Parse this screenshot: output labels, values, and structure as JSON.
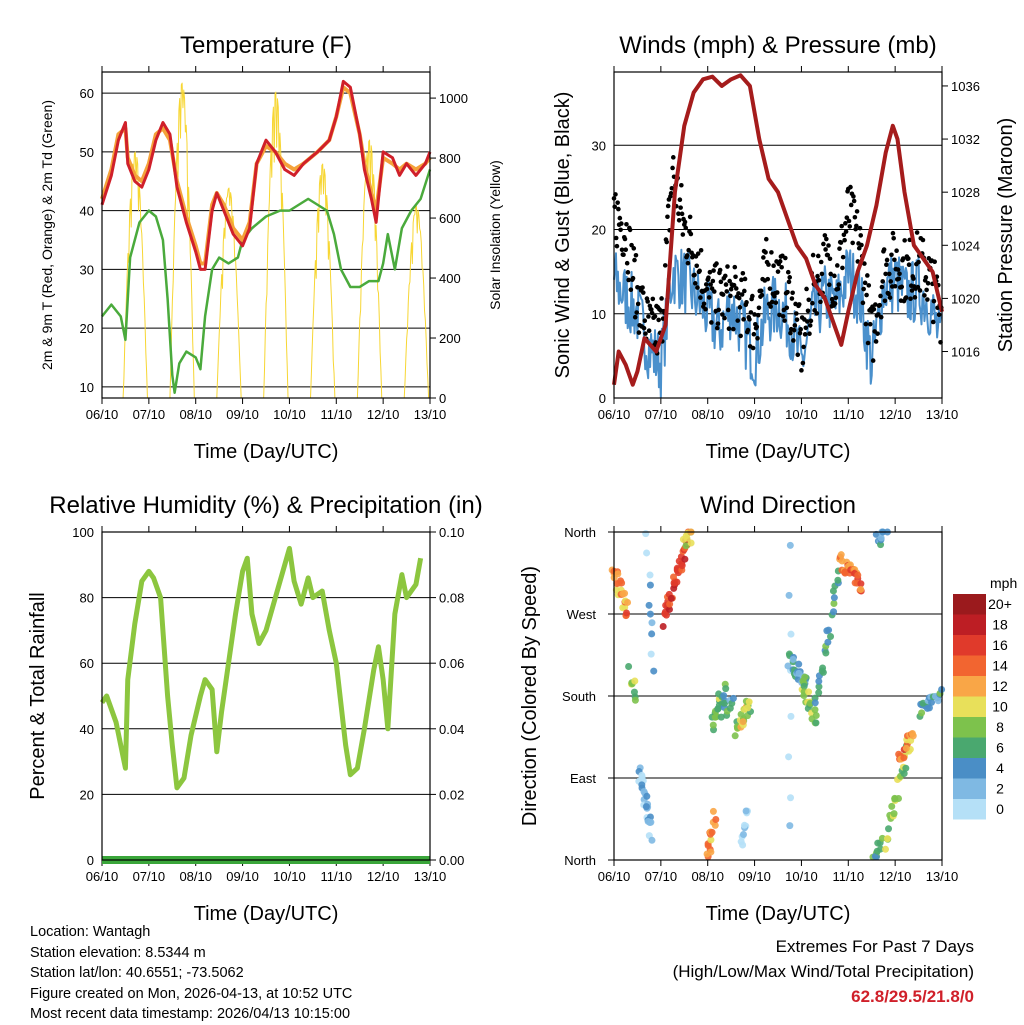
{
  "chart_data": [
    {
      "type": "line",
      "title": "Temperature (F)",
      "xlabel": "Time (Day/UTC)",
      "ylabel": "2m & 9m T (Red, Orange) & 2m Td (Green)",
      "ylabel_right": "Solar Insolation (Yellow)",
      "x_ticks": [
        "06/10",
        "07/10",
        "08/10",
        "09/10",
        "10/10",
        "11/10",
        "12/10",
        "13/10"
      ],
      "xlim": [
        0,
        7
      ],
      "ylim": [
        8.1,
        63.6
      ],
      "y_ticks": [
        10,
        20,
        30,
        40,
        50,
        60
      ],
      "ylim_right": [
        0,
        1087
      ],
      "y_ticks_right": [
        0,
        200,
        400,
        600,
        800,
        1000
      ],
      "grid": true,
      "series": [
        {
          "name": "2m T",
          "color": "#d0202a",
          "x": [
            0,
            0.2,
            0.35,
            0.5,
            0.55,
            0.7,
            0.85,
            1.0,
            1.15,
            1.3,
            1.45,
            1.6,
            1.8,
            2.0,
            2.1,
            2.2,
            2.35,
            2.45,
            2.6,
            2.8,
            3.0,
            3.15,
            3.3,
            3.5,
            3.7,
            3.9,
            4.1,
            4.3,
            4.6,
            4.85,
            5.0,
            5.15,
            5.3,
            5.5,
            5.6,
            5.75,
            5.85,
            6.0,
            6.2,
            6.35,
            6.5,
            6.7,
            6.9,
            7.0
          ],
          "y": [
            41,
            46,
            52,
            55,
            48,
            45,
            44,
            47,
            52,
            55,
            53,
            44,
            38,
            33,
            30,
            30,
            40,
            43,
            40,
            36,
            34,
            37,
            48,
            52,
            50,
            47,
            46,
            48,
            50,
            52,
            56,
            62,
            61,
            53,
            47,
            42,
            38,
            50,
            49,
            46,
            48,
            46,
            48,
            50
          ]
        },
        {
          "name": "9m T",
          "color": "#f4a23a",
          "x": [
            0,
            0.2,
            0.35,
            0.5,
            0.55,
            0.7,
            0.85,
            1.0,
            1.15,
            1.3,
            1.45,
            1.6,
            1.8,
            2.0,
            2.1,
            2.2,
            2.35,
            2.45,
            2.6,
            2.8,
            3.0,
            3.15,
            3.3,
            3.5,
            3.7,
            3.9,
            4.1,
            4.3,
            4.6,
            4.85,
            5.0,
            5.15,
            5.3,
            5.5,
            5.6,
            5.75,
            5.85,
            6.0,
            6.2,
            6.35,
            6.5,
            6.7,
            6.9,
            7.0
          ],
          "y": [
            42,
            47,
            53,
            54,
            49,
            46,
            45,
            48,
            53,
            54,
            52,
            45,
            39,
            34,
            31,
            31,
            41,
            43,
            41,
            37,
            35,
            38,
            48,
            51,
            50,
            48,
            47,
            48,
            50,
            52,
            56,
            61,
            60,
            53,
            48,
            43,
            40,
            49,
            48,
            47,
            48,
            47,
            48,
            49
          ]
        },
        {
          "name": "2m Td",
          "color": "#4aaa3c",
          "x": [
            0,
            0.2,
            0.4,
            0.5,
            0.6,
            0.8,
            1.0,
            1.15,
            1.3,
            1.4,
            1.5,
            1.55,
            1.65,
            1.8,
            2.0,
            2.1,
            2.2,
            2.35,
            2.5,
            2.7,
            2.9,
            3.0,
            3.2,
            3.5,
            3.8,
            4.0,
            4.2,
            4.4,
            4.6,
            4.8,
            4.95,
            5.1,
            5.3,
            5.5,
            5.7,
            5.9,
            6.0,
            6.1,
            6.25,
            6.4,
            6.6,
            6.8,
            7.0
          ],
          "y": [
            22,
            24,
            22,
            18,
            32,
            38,
            40,
            39,
            35,
            25,
            12,
            9,
            14,
            16,
            15,
            13,
            22,
            30,
            32,
            31,
            32,
            35,
            37,
            39,
            40,
            40,
            41,
            42,
            41,
            40,
            36,
            30,
            27,
            27,
            28,
            28,
            31,
            36,
            30,
            37,
            40,
            42,
            47
          ]
        },
        {
          "name": "Solar Insolation",
          "color": "#f7d633",
          "axis": "right",
          "daily_peaks": [
            820,
            1050,
            700,
            1020,
            780,
            860,
            640
          ]
        }
      ]
    },
    {
      "type": "line",
      "title": "Winds (mph) & Pressure (mb)",
      "xlabel": "Time (Day/UTC)",
      "ylabel": "Sonic Wind & Gust (Blue, Black)",
      "ylabel_right": "Station Pressure (Maroon)",
      "x_ticks": [
        "06/10",
        "07/10",
        "08/10",
        "09/10",
        "10/10",
        "11/10",
        "12/10",
        "13/10"
      ],
      "xlim": [
        0,
        7
      ],
      "ylim": [
        0,
        38.7
      ],
      "y_ticks": [
        0,
        10,
        20,
        30
      ],
      "ylim_right": [
        1012.5,
        1037.05
      ],
      "y_ticks_right": [
        1016,
        1020,
        1024,
        1028,
        1032,
        1036
      ],
      "grid": true,
      "series": [
        {
          "name": "Sonic Wind",
          "color": "#4a90cc",
          "x": [
            0,
            0.25,
            0.5,
            0.75,
            1,
            1.25,
            1.5,
            1.75,
            2,
            2.25,
            2.5,
            2.75,
            3,
            3.25,
            3.5,
            3.75,
            4,
            4.25,
            4.5,
            4.75,
            5,
            5.25,
            5.5,
            5.75,
            6,
            6.25,
            6.5,
            6.75,
            7
          ],
          "y": [
            14,
            12,
            10,
            6,
            4,
            15,
            14,
            12,
            10,
            8,
            11,
            8,
            5,
            10,
            11,
            9,
            4,
            10,
            12,
            11,
            15,
            12,
            4,
            13,
            14,
            12,
            13,
            11,
            6
          ]
        },
        {
          "name": "Gust",
          "color": "#000000",
          "x": [
            0,
            0.25,
            0.5,
            0.75,
            1,
            1.25,
            1.5,
            1.75,
            2,
            2.25,
            2.5,
            2.75,
            3,
            3.25,
            3.5,
            3.75,
            4,
            4.25,
            4.5,
            4.75,
            5,
            5.25,
            5.5,
            5.75,
            6,
            6.25,
            6.5,
            6.75,
            7
          ],
          "y": [
            22,
            20,
            12,
            8,
            8,
            27,
            20,
            17,
            12,
            12,
            12,
            11,
            9,
            15,
            14,
            12,
            6,
            13,
            16,
            14,
            22,
            18,
            7,
            15,
            16,
            15,
            16,
            14,
            10
          ]
        },
        {
          "name": "Station Pressure",
          "color": "#a51c1c",
          "axis": "right",
          "x": [
            0,
            0.1,
            0.25,
            0.4,
            0.5,
            0.65,
            0.9,
            1.1,
            1.3,
            1.5,
            1.7,
            1.9,
            2.1,
            2.3,
            2.5,
            2.7,
            2.9,
            3.1,
            3.3,
            3.5,
            3.7,
            3.9,
            4.1,
            4.3,
            4.5,
            4.7,
            4.85,
            5.0,
            5.2,
            5.4,
            5.6,
            5.8,
            5.95,
            6.05,
            6.2,
            6.4,
            6.6,
            6.8,
            7.0
          ],
          "y": [
            1013.5,
            1016,
            1015,
            1013.5,
            1014.5,
            1017,
            1016,
            1018,
            1028,
            1033,
            1035.5,
            1036.5,
            1036.7,
            1036,
            1036.5,
            1036.8,
            1036,
            1032,
            1029,
            1028,
            1026,
            1024,
            1023,
            1021,
            1020,
            1018,
            1016.5,
            1019,
            1022,
            1024,
            1027,
            1031,
            1033,
            1032,
            1028,
            1024,
            1023,
            1022,
            1019
          ]
        }
      ]
    },
    {
      "type": "line",
      "title": "Relative Humidity (%) & Precipitation (in)",
      "xlabel": "Time (Day/UTC)",
      "ylabel": "Percent & Total Rainfall",
      "x_ticks": [
        "06/10",
        "07/10",
        "08/10",
        "09/10",
        "10/10",
        "11/10",
        "12/10",
        "13/10"
      ],
      "xlim": [
        0,
        7
      ],
      "ylim": [
        0,
        100
      ],
      "y_ticks": [
        0,
        20,
        40,
        60,
        80,
        100
      ],
      "ylim_right": [
        0,
        0.1
      ],
      "y_ticks_right": [
        "0.00",
        "0.02",
        "0.04",
        "0.06",
        "0.08",
        "0.10"
      ],
      "grid": true,
      "series": [
        {
          "name": "Relative Humidity",
          "color": "#8cc63f",
          "x": [
            0,
            0.1,
            0.3,
            0.5,
            0.55,
            0.7,
            0.85,
            1.0,
            1.1,
            1.25,
            1.4,
            1.5,
            1.6,
            1.75,
            1.9,
            2.1,
            2.2,
            2.35,
            2.45,
            2.55,
            2.7,
            2.85,
            3.0,
            3.1,
            3.2,
            3.35,
            3.5,
            3.7,
            3.9,
            4.0,
            4.1,
            4.25,
            4.4,
            4.5,
            4.7,
            4.85,
            5.0,
            5.2,
            5.3,
            5.45,
            5.6,
            5.8,
            5.9,
            6.0,
            6.1,
            6.25,
            6.4,
            6.5,
            6.7,
            6.8
          ],
          "y": [
            48,
            50,
            42,
            28,
            55,
            72,
            85,
            88,
            86,
            80,
            50,
            35,
            22,
            25,
            38,
            50,
            55,
            52,
            33,
            45,
            60,
            75,
            88,
            92,
            75,
            66,
            70,
            80,
            90,
            95,
            85,
            78,
            86,
            80,
            82,
            70,
            60,
            35,
            26,
            28,
            40,
            58,
            65,
            55,
            40,
            75,
            87,
            80,
            84,
            92
          ]
        },
        {
          "name": "Total Precipitation",
          "color": "#3aa63a",
          "axis": "right",
          "x": [
            0,
            7
          ],
          "y": [
            0,
            0
          ]
        }
      ]
    },
    {
      "type": "scatter",
      "title": "Wind Direction",
      "xlabel": "Time (Day/UTC)",
      "ylabel": "Direction (Colored By Speed)",
      "x_ticks": [
        "06/10",
        "07/10",
        "08/10",
        "09/10",
        "10/10",
        "11/10",
        "12/10",
        "13/10"
      ],
      "xlim": [
        0,
        7
      ],
      "ylim": [
        0,
        360
      ],
      "y_ticks": [
        {
          "deg": 0,
          "label": "North"
        },
        {
          "deg": 90,
          "label": "East"
        },
        {
          "deg": 180,
          "label": "South"
        },
        {
          "deg": 270,
          "label": "West"
        },
        {
          "deg": 360,
          "label": "North"
        }
      ],
      "clusters_note": "each cluster: [start_day, end_day, start_deg, end_deg, speed_mph, count]",
      "clusters": [
        [
          0.0,
          0.3,
          318,
          270,
          14,
          25
        ],
        [
          0.35,
          0.45,
          205,
          180,
          9,
          8
        ],
        [
          0.55,
          0.8,
          95,
          30,
          3,
          25
        ],
        [
          0.7,
          0.85,
          350,
          210,
          3,
          10
        ],
        [
          1.05,
          1.6,
          265,
          355,
          17,
          40
        ],
        [
          1.5,
          1.65,
          345,
          360,
          10,
          8
        ],
        [
          2.0,
          2.15,
          2,
          45,
          14,
          15
        ],
        [
          2.1,
          2.35,
          145,
          190,
          8,
          20
        ],
        [
          2.3,
          2.55,
          165,
          170,
          6,
          10
        ],
        [
          2.6,
          2.9,
          145,
          170,
          10,
          25
        ],
        [
          2.75,
          2.85,
          15,
          60,
          2,
          10
        ],
        [
          3.75,
          3.75,
          30,
          340,
          2,
          8
        ],
        [
          3.75,
          4.1,
          220,
          190,
          5,
          25
        ],
        [
          4.0,
          4.3,
          200,
          150,
          9,
          20
        ],
        [
          4.3,
          4.8,
          170,
          310,
          6,
          25
        ],
        [
          4.8,
          5.3,
          330,
          300,
          15,
          30
        ],
        [
          5.6,
          5.8,
          350,
          360,
          4,
          10
        ],
        [
          5.55,
          5.7,
          2,
          20,
          8,
          10
        ],
        [
          5.8,
          6.3,
          20,
          130,
          9,
          25
        ],
        [
          6.1,
          6.4,
          110,
          140,
          14,
          15
        ],
        [
          6.5,
          7.0,
          160,
          185,
          6,
          20
        ]
      ],
      "legend": {
        "title": "mph",
        "placement": "right",
        "bins": [
          {
            "label": "20+",
            "color": "#9b1a1d"
          },
          {
            "label": "18",
            "color": "#bd1e24"
          },
          {
            "label": "16",
            "color": "#e03a2b"
          },
          {
            "label": "14",
            "color": "#f26530"
          },
          {
            "label": "12",
            "color": "#f9a647"
          },
          {
            "label": "10",
            "color": "#e8e05a"
          },
          {
            "label": "8",
            "color": "#7dc24c"
          },
          {
            "label": "6",
            "color": "#4aa86f"
          },
          {
            "label": "4",
            "color": "#4a8ec6"
          },
          {
            "label": "2",
            "color": "#7fb9e3"
          },
          {
            "label": "0",
            "color": "#b5e0f7"
          }
        ]
      }
    }
  ],
  "info": {
    "location": "Location: Wantagh",
    "elevation": "Station elevation: 8.5344 m",
    "latlon": "Station lat/lon: 40.6551; -73.5062",
    "created": "Figure created on Mon, 2026-04-13, at 10:52 UTC",
    "recent": "Most recent data timestamp: 2026/04/13 10:15:00"
  },
  "extremes": {
    "title": "Extremes For Past 7 Days",
    "subtitle": "(High/Low/Max Wind/Total Precipitation)",
    "value": "62.8/29.5/21.8/0",
    "value_color": "#d0202a"
  }
}
